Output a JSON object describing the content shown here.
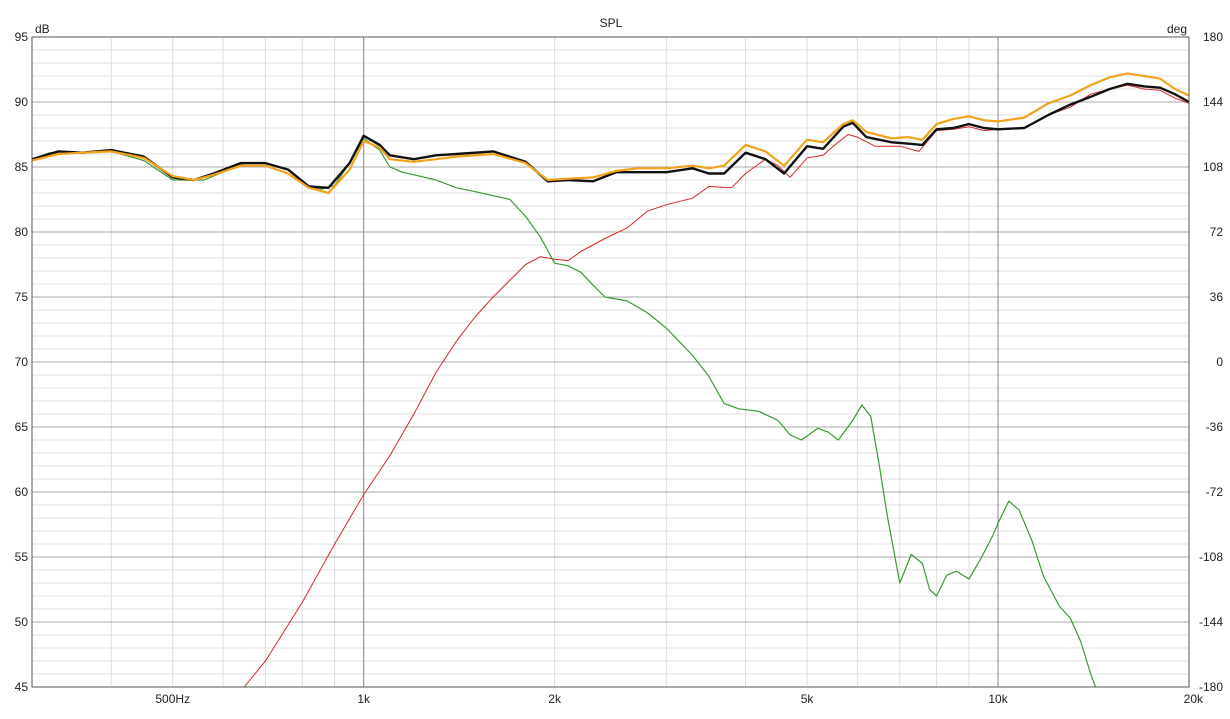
{
  "chart_data": {
    "type": "line",
    "title": "SPL",
    "ylabel_left": "dB",
    "ylabel_right": "deg",
    "xscale": "log",
    "xlim": [
      300,
      20000
    ],
    "ylim": [
      45,
      95
    ],
    "ylim_right": [
      -180,
      180
    ],
    "grid": true,
    "x_ticks": [
      {
        "value": 500,
        "label": "500Hz"
      },
      {
        "value": 1000,
        "label": "1k"
      },
      {
        "value": 2000,
        "label": "2k"
      },
      {
        "value": 5000,
        "label": "5k"
      },
      {
        "value": 10000,
        "label": "10k"
      },
      {
        "value": 20000,
        "label": "20k"
      }
    ],
    "y_ticks_left": [
      95,
      90,
      85,
      80,
      75,
      70,
      65,
      60,
      55,
      50,
      45
    ],
    "y_ticks_right": [
      180,
      144,
      108,
      72,
      36,
      0,
      -36,
      -72,
      -108,
      -144,
      -180
    ],
    "series": [
      {
        "color": "#d62828",
        "width": 1,
        "points": [
          [
            600,
            43
          ],
          [
            700,
            47
          ],
          [
            800,
            51.5
          ],
          [
            900,
            56
          ],
          [
            1000,
            59.8
          ],
          [
            1100,
            62.8
          ],
          [
            1200,
            66
          ],
          [
            1300,
            69.2
          ],
          [
            1400,
            71.6
          ],
          [
            1500,
            73.5
          ],
          [
            1600,
            75
          ],
          [
            1700,
            76.3
          ],
          [
            1800,
            77.5
          ],
          [
            1900,
            78.1
          ],
          [
            2000,
            77.9
          ],
          [
            2100,
            77.8
          ],
          [
            2200,
            78.5
          ],
          [
            2400,
            79.5
          ],
          [
            2600,
            80.3
          ],
          [
            2800,
            81.6
          ],
          [
            3000,
            82.1
          ],
          [
            3300,
            82.6
          ],
          [
            3500,
            83.5
          ],
          [
            3800,
            83.4
          ],
          [
            4000,
            84.5
          ],
          [
            4300,
            85.6
          ],
          [
            4500,
            85.1
          ],
          [
            4700,
            84.2
          ],
          [
            5000,
            85.7
          ],
          [
            5300,
            85.9
          ],
          [
            5500,
            86.6
          ],
          [
            5800,
            87.5
          ],
          [
            6000,
            87.3
          ],
          [
            6400,
            86.6
          ],
          [
            7000,
            86.6
          ],
          [
            7500,
            86.2
          ],
          [
            8000,
            87.8
          ],
          [
            8500,
            87.9
          ],
          [
            9000,
            88.1
          ],
          [
            9500,
            87.8
          ],
          [
            10000,
            87.9
          ],
          [
            11000,
            88.0
          ],
          [
            12000,
            89.0
          ],
          [
            13000,
            89.6
          ],
          [
            14000,
            90.6
          ],
          [
            15000,
            91.0
          ],
          [
            16000,
            91.3
          ],
          [
            17000,
            91.0
          ],
          [
            18000,
            90.9
          ],
          [
            19000,
            90.3
          ],
          [
            20000,
            89.9
          ]
        ]
      },
      {
        "color": "#3a9a32",
        "width": 1.2,
        "points": [
          [
            300,
            85.6
          ],
          [
            320,
            86.1
          ],
          [
            340,
            86.0
          ],
          [
            360,
            86.1
          ],
          [
            400,
            86.2
          ],
          [
            450,
            85.5
          ],
          [
            500,
            84.0
          ],
          [
            560,
            84.0
          ],
          [
            600,
            84.6
          ],
          [
            650,
            85.3
          ],
          [
            700,
            85.3
          ],
          [
            760,
            84.8
          ],
          [
            820,
            83.5
          ],
          [
            860,
            83.3
          ],
          [
            900,
            83.6
          ],
          [
            950,
            85.3
          ],
          [
            1000,
            87.2
          ],
          [
            1060,
            86.3
          ],
          [
            1100,
            85.0
          ],
          [
            1150,
            84.6
          ],
          [
            1200,
            84.4
          ],
          [
            1300,
            84.0
          ],
          [
            1400,
            83.4
          ],
          [
            1500,
            83.1
          ],
          [
            1700,
            82.5
          ],
          [
            1800,
            81.2
          ],
          [
            1900,
            79.6
          ],
          [
            2000,
            77.6
          ],
          [
            2100,
            77.4
          ],
          [
            2200,
            76.9
          ],
          [
            2300,
            75.9
          ],
          [
            2400,
            75.0
          ],
          [
            2600,
            74.7
          ],
          [
            2800,
            73.8
          ],
          [
            3000,
            72.6
          ],
          [
            3300,
            70.5
          ],
          [
            3500,
            68.9
          ],
          [
            3700,
            66.8
          ],
          [
            3900,
            66.4
          ],
          [
            4200,
            66.2
          ],
          [
            4500,
            65.5
          ],
          [
            4700,
            64.4
          ],
          [
            4900,
            64.0
          ],
          [
            5200,
            64.9
          ],
          [
            5400,
            64.6
          ],
          [
            5600,
            64.0
          ],
          [
            5900,
            65.5
          ],
          [
            6100,
            66.7
          ],
          [
            6300,
            65.8
          ],
          [
            6500,
            62.0
          ],
          [
            6700,
            58.0
          ],
          [
            7000,
            53.0
          ],
          [
            7300,
            55.2
          ],
          [
            7600,
            54.5
          ],
          [
            7800,
            52.5
          ],
          [
            8000,
            52.0
          ],
          [
            8300,
            53.6
          ],
          [
            8600,
            53.9
          ],
          [
            9000,
            53.3
          ],
          [
            9400,
            54.9
          ],
          [
            9800,
            56.6
          ],
          [
            10000,
            57.6
          ],
          [
            10400,
            59.3
          ],
          [
            10800,
            58.6
          ],
          [
            11300,
            56.3
          ],
          [
            11800,
            53.5
          ],
          [
            12500,
            51.2
          ],
          [
            13000,
            50.3
          ],
          [
            13500,
            48.5
          ],
          [
            14000,
            46.0
          ],
          [
            14500,
            44.0
          ]
        ]
      },
      {
        "color": "#111111",
        "width": 2.4,
        "points": [
          [
            300,
            85.6
          ],
          [
            330,
            86.2
          ],
          [
            360,
            86.1
          ],
          [
            400,
            86.3
          ],
          [
            450,
            85.8
          ],
          [
            500,
            84.2
          ],
          [
            540,
            84.0
          ],
          [
            580,
            84.5
          ],
          [
            640,
            85.3
          ],
          [
            700,
            85.3
          ],
          [
            760,
            84.8
          ],
          [
            820,
            83.5
          ],
          [
            880,
            83.4
          ],
          [
            950,
            85.3
          ],
          [
            1000,
            87.4
          ],
          [
            1060,
            86.7
          ],
          [
            1100,
            85.9
          ],
          [
            1200,
            85.6
          ],
          [
            1300,
            85.9
          ],
          [
            1400,
            86.0
          ],
          [
            1600,
            86.2
          ],
          [
            1800,
            85.4
          ],
          [
            1950,
            83.9
          ],
          [
            2100,
            84.0
          ],
          [
            2300,
            83.9
          ],
          [
            2500,
            84.6
          ],
          [
            2700,
            84.6
          ],
          [
            3000,
            84.6
          ],
          [
            3300,
            84.9
          ],
          [
            3500,
            84.5
          ],
          [
            3700,
            84.5
          ],
          [
            4000,
            86.1
          ],
          [
            4300,
            85.6
          ],
          [
            4600,
            84.5
          ],
          [
            5000,
            86.6
          ],
          [
            5300,
            86.4
          ],
          [
            5700,
            88.1
          ],
          [
            5900,
            88.4
          ],
          [
            6200,
            87.3
          ],
          [
            6800,
            86.9
          ],
          [
            7200,
            86.8
          ],
          [
            7600,
            86.7
          ],
          [
            8000,
            87.9
          ],
          [
            8500,
            88.0
          ],
          [
            9000,
            88.3
          ],
          [
            9500,
            88.0
          ],
          [
            10000,
            87.9
          ],
          [
            11000,
            88.0
          ],
          [
            12000,
            89.0
          ],
          [
            13000,
            89.8
          ],
          [
            14000,
            90.4
          ],
          [
            15000,
            91.0
          ],
          [
            16000,
            91.4
          ],
          [
            17000,
            91.2
          ],
          [
            18000,
            91.1
          ],
          [
            19000,
            90.6
          ],
          [
            20000,
            90.0
          ]
        ]
      },
      {
        "color": "#f2a31b",
        "width": 2.2,
        "points": [
          [
            300,
            85.5
          ],
          [
            330,
            86.0
          ],
          [
            360,
            86.1
          ],
          [
            400,
            86.2
          ],
          [
            450,
            85.7
          ],
          [
            500,
            84.3
          ],
          [
            540,
            84.0
          ],
          [
            580,
            84.4
          ],
          [
            640,
            85.1
          ],
          [
            700,
            85.1
          ],
          [
            760,
            84.5
          ],
          [
            820,
            83.4
          ],
          [
            880,
            83.0
          ],
          [
            950,
            84.8
          ],
          [
            1000,
            87.0
          ],
          [
            1060,
            86.5
          ],
          [
            1100,
            85.6
          ],
          [
            1200,
            85.4
          ],
          [
            1300,
            85.6
          ],
          [
            1400,
            85.8
          ],
          [
            1600,
            86.0
          ],
          [
            1800,
            85.3
          ],
          [
            1950,
            84.0
          ],
          [
            2100,
            84.1
          ],
          [
            2300,
            84.2
          ],
          [
            2500,
            84.7
          ],
          [
            2700,
            84.9
          ],
          [
            3000,
            84.9
          ],
          [
            3300,
            85.1
          ],
          [
            3500,
            84.9
          ],
          [
            3700,
            85.1
          ],
          [
            4000,
            86.7
          ],
          [
            4300,
            86.2
          ],
          [
            4600,
            85.1
          ],
          [
            5000,
            87.1
          ],
          [
            5300,
            86.9
          ],
          [
            5700,
            88.3
          ],
          [
            5900,
            88.6
          ],
          [
            6200,
            87.7
          ],
          [
            6800,
            87.2
          ],
          [
            7200,
            87.3
          ],
          [
            7600,
            87.1
          ],
          [
            8000,
            88.3
          ],
          [
            8500,
            88.7
          ],
          [
            9000,
            88.9
          ],
          [
            9500,
            88.6
          ],
          [
            10000,
            88.5
          ],
          [
            11000,
            88.8
          ],
          [
            12000,
            89.9
          ],
          [
            13000,
            90.5
          ],
          [
            14000,
            91.3
          ],
          [
            15000,
            91.9
          ],
          [
            16000,
            92.2
          ],
          [
            17000,
            92.0
          ],
          [
            18000,
            91.8
          ],
          [
            19000,
            91.0
          ],
          [
            20000,
            90.5
          ]
        ]
      }
    ]
  }
}
